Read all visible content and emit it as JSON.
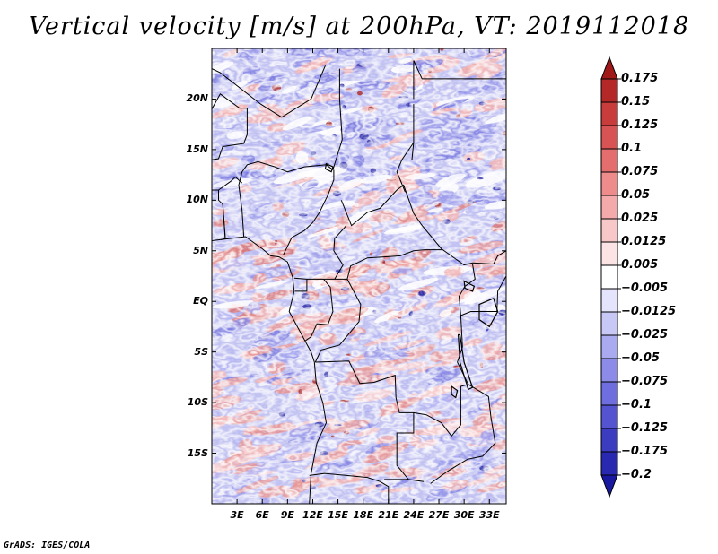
{
  "title": "Vertical velocity [m/s] at 200hPa, VT: 2019112018",
  "credit": "GrADS: IGES/COLA",
  "map": {
    "lon_range": [
      0,
      35
    ],
    "lat_range": [
      -20,
      25
    ],
    "lat_labels": [
      {
        "lat": 20,
        "label": "20N"
      },
      {
        "lat": 15,
        "label": "15N"
      },
      {
        "lat": 10,
        "label": "10N"
      },
      {
        "lat": 5,
        "label": "5N"
      },
      {
        "lat": 0,
        "label": "EQ"
      },
      {
        "lat": -5,
        "label": "5S"
      },
      {
        "lat": -10,
        "label": "10S"
      },
      {
        "lat": -15,
        "label": "15S"
      }
    ],
    "lon_labels": [
      {
        "lon": 3,
        "label": "3E"
      },
      {
        "lon": 6,
        "label": "6E"
      },
      {
        "lon": 9,
        "label": "9E"
      },
      {
        "lon": 12,
        "label": "12E"
      },
      {
        "lon": 15,
        "label": "15E"
      },
      {
        "lon": 18,
        "label": "18E"
      },
      {
        "lon": 21,
        "label": "21E"
      },
      {
        "lon": 24,
        "label": "24E"
      },
      {
        "lon": 27,
        "label": "27E"
      },
      {
        "lon": 30,
        "label": "30E"
      },
      {
        "lon": 33,
        "label": "33E"
      }
    ]
  },
  "colorbar": {
    "labels": [
      "0.175",
      "0.15",
      "0.125",
      "0.1",
      "0.075",
      "0.05",
      "0.025",
      "0.0125",
      "0.005",
      "−0.005",
      "−0.0125",
      "−0.025",
      "−0.05",
      "−0.075",
      "−0.1",
      "−0.125",
      "−0.175",
      "−0.2"
    ],
    "colors": [
      "#a01818",
      "#b42828",
      "#c83c3c",
      "#d85454",
      "#e46e6e",
      "#ee8c8c",
      "#f4aaaa",
      "#f8c8c8",
      "#fce4e4",
      "#ffffff",
      "#e4e4fc",
      "#c8c8f6",
      "#aaaaf0",
      "#8c8ce8",
      "#6e6ede",
      "#5454d0",
      "#3c3cc0",
      "#2828b0",
      "#1818a0"
    ]
  },
  "field_colors": {
    "positive": "#e46e6e",
    "negative": "#6e6ede",
    "strong_positive": "#a01818",
    "strong_negative": "#1818a0"
  }
}
